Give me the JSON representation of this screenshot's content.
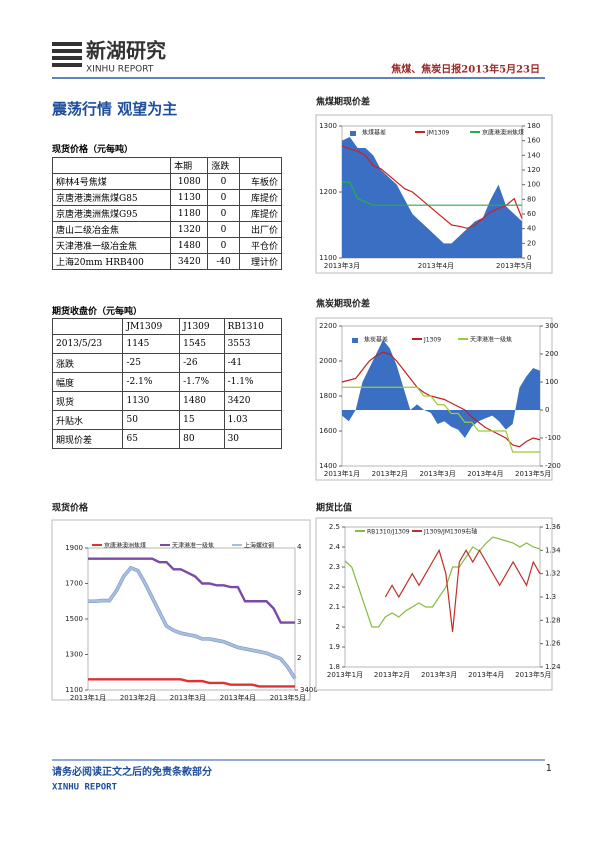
{
  "header": {
    "logo_cn": "新湖研究",
    "logo_en": "XINHU REPORT",
    "report_title": "焦煤、焦炭日报2013年5月23日"
  },
  "headline": "震荡行情 观望为主",
  "spot_table": {
    "title": "现货价格（元每吨）",
    "columns": [
      "本期",
      "涨跌"
    ],
    "rows": [
      [
        "柳林4号焦煤",
        "1080",
        "0",
        "车板价"
      ],
      [
        "京唐港澳洲焦煤G85",
        "1130",
        "0",
        "库提价"
      ],
      [
        "京唐港澳洲焦煤G95",
        "1180",
        "0",
        "库提价"
      ],
      [
        "唐山二级冶金焦",
        "1320",
        "0",
        "出厂价"
      ],
      [
        "天津港准一级冶金焦",
        "1480",
        "0",
        "平仓价"
      ],
      [
        "上海20mm HRB400",
        "3420",
        "-40",
        "理计价"
      ]
    ]
  },
  "futures_table": {
    "title": "期货收盘价（元每吨）",
    "columns": [
      "JM1309",
      "J1309",
      "RB1310"
    ],
    "rows": [
      [
        "2013/5/23",
        "1145",
        "1545",
        "3553"
      ],
      [
        "涨跌",
        "-25",
        "-26",
        "-41"
      ],
      [
        "幅度",
        "-2.1%",
        "-1.7%",
        "-1.1%"
      ],
      [
        "现货",
        "1130",
        "1480",
        "3420"
      ],
      [
        "升贴水",
        "50",
        "15",
        "1.03"
      ],
      [
        "期现价差",
        "65",
        "80",
        "30"
      ]
    ]
  },
  "chart_data": [
    {
      "type": "line",
      "title": "焦煤期现价差",
      "categories": [
        "2013年3月",
        null,
        null,
        null,
        null,
        null,
        null,
        null,
        null,
        null,
        null,
        null,
        "2013年4月",
        null,
        null,
        null,
        null,
        null,
        null,
        null,
        null,
        null,
        "2013年5月",
        null
      ],
      "ylim": [
        1100,
        1300
      ],
      "yticks": [
        1100,
        1200,
        1300
      ],
      "y2lim": [
        0,
        180
      ],
      "y2ticks": [
        0,
        20,
        40,
        60,
        80,
        100,
        120,
        140,
        160,
        180
      ],
      "series": [
        {
          "name": "焦煤基差",
          "color": "#3a6fc4",
          "kind": "area",
          "axis": "y2",
          "values": [
            160,
            165,
            150,
            150,
            140,
            120,
            110,
            100,
            80,
            60,
            50,
            40,
            30,
            20,
            20,
            30,
            40,
            50,
            55,
            80,
            100,
            70,
            60,
            50
          ]
        },
        {
          "name": "JM1309",
          "color": "#d02020",
          "values": [
            1270,
            1265,
            1262,
            1255,
            1240,
            1235,
            1225,
            1215,
            1205,
            1200,
            1190,
            1180,
            1170,
            1160,
            1150,
            1148,
            1145,
            1150,
            1160,
            1170,
            1175,
            1180,
            1190,
            1160
          ]
        },
        {
          "name": "京唐港澳洲焦煤",
          "color": "#22b04a",
          "values": [
            1215,
            1215,
            1190,
            1185,
            1180,
            1180,
            1180,
            1180,
            1180,
            1180,
            1180,
            1180,
            1180,
            1180,
            1180,
            1180,
            1180,
            1180,
            1180,
            1180,
            1180,
            1180,
            1180,
            1180
          ]
        }
      ]
    },
    {
      "type": "line",
      "title": "焦炭期现价差",
      "categories": [
        "2013年1月",
        null,
        null,
        null,
        null,
        null,
        null,
        "2013年2月",
        null,
        null,
        null,
        null,
        null,
        null,
        "2013年3月",
        null,
        null,
        null,
        null,
        null,
        null,
        "2013年4月",
        null,
        null,
        null,
        null,
        null,
        null,
        "2013年5月",
        null
      ],
      "ylim": [
        1400,
        2200
      ],
      "yticks": [
        1400,
        1600,
        1800,
        2000,
        2200
      ],
      "y2lim": [
        -200,
        300
      ],
      "y2ticks": [
        -200,
        -100,
        0,
        100,
        200,
        300
      ],
      "series": [
        {
          "name": "焦炭基差",
          "color": "#3a6fc4",
          "kind": "area",
          "axis": "y2",
          "values": [
            -20,
            -40,
            0,
            100,
            150,
            200,
            250,
            220,
            160,
            80,
            0,
            20,
            0,
            -10,
            -50,
            -40,
            -60,
            -70,
            -100,
            -60,
            -40,
            -30,
            -20,
            -40,
            -70,
            -50,
            80,
            120,
            150,
            140
          ]
        },
        {
          "name": "J1309",
          "color": "#c02020",
          "values": [
            1880,
            1890,
            1900,
            1950,
            2000,
            2030,
            2050,
            2040,
            2000,
            1950,
            1900,
            1850,
            1820,
            1800,
            1790,
            1780,
            1760,
            1740,
            1720,
            1680,
            1650,
            1620,
            1600,
            1580,
            1560,
            1520,
            1510,
            1540,
            1560,
            1550
          ]
        },
        {
          "name": "天津港准一级焦",
          "color": "#9acd32",
          "values": [
            1850,
            1850,
            1850,
            1850,
            1850,
            1850,
            1850,
            1850,
            1850,
            1850,
            1850,
            1850,
            1800,
            1800,
            1750,
            1750,
            1700,
            1700,
            1650,
            1650,
            1600,
            1600,
            1600,
            1600,
            1600,
            1480,
            1480,
            1480,
            1480,
            1480
          ]
        }
      ]
    },
    {
      "type": "line",
      "title": "现货价格",
      "categories": [
        "2013年1月",
        null,
        null,
        null,
        null,
        null,
        null,
        "2013年2月",
        null,
        null,
        null,
        null,
        null,
        null,
        "2013年3月",
        null,
        null,
        null,
        null,
        null,
        null,
        "2013年4月",
        null,
        null,
        null,
        null,
        null,
        null,
        "2013年5月",
        null
      ],
      "ylim": [
        1100,
        1900
      ],
      "yticks": [
        1100,
        1300,
        1500,
        1700,
        1900
      ],
      "y2lim": [
        3400,
        4400
      ],
      "y2ticks": [
        3400
      ],
      "axis_fragments": [
        "4",
        "3",
        "3",
        "2"
      ],
      "series": [
        {
          "name": "京唐港澳洲焦煤",
          "color": "#dd3333",
          "values": [
            1160,
            1160,
            1160,
            1160,
            1160,
            1160,
            1160,
            1160,
            1160,
            1160,
            1160,
            1160,
            1160,
            1160,
            1150,
            1150,
            1150,
            1140,
            1140,
            1140,
            1130,
            1130,
            1130,
            1130,
            1120,
            1120,
            1120,
            1120,
            1120,
            1120
          ]
        },
        {
          "name": "天津港准一级焦",
          "color": "#7a4aa6",
          "values": [
            1840,
            1840,
            1840,
            1840,
            1840,
            1840,
            1840,
            1840,
            1840,
            1840,
            1820,
            1820,
            1780,
            1780,
            1760,
            1740,
            1700,
            1700,
            1690,
            1690,
            1680,
            1680,
            1600,
            1600,
            1600,
            1600,
            1560,
            1480,
            1480,
            1480
          ]
        },
        {
          "name": "上海螺纹钢",
          "color": "#a8bfe0",
          "axis": "y2",
          "values": [
            4025,
            4025,
            4030,
            4030,
            4100,
            4200,
            4260,
            4240,
            4150,
            4050,
            3950,
            3850,
            3820,
            3800,
            3790,
            3780,
            3760,
            3760,
            3750,
            3740,
            3720,
            3700,
            3690,
            3680,
            3670,
            3660,
            3640,
            3620,
            3560,
            3480
          ]
        }
      ]
    },
    {
      "type": "line",
      "title": "期货比值",
      "categories": [
        "2013年1月",
        null,
        null,
        null,
        null,
        null,
        null,
        "2013年2月",
        null,
        null,
        null,
        null,
        null,
        null,
        "2013年3月",
        null,
        null,
        null,
        null,
        null,
        null,
        "2013年4月",
        null,
        null,
        null,
        null,
        null,
        null,
        "2013年5月",
        null
      ],
      "ylim": [
        1.8,
        2.5
      ],
      "yticks": [
        1.8,
        1.9,
        2,
        2.1,
        2.2,
        2.3,
        2.4,
        2.5
      ],
      "y2lim": [
        1.24,
        1.36
      ],
      "y2ticks": [
        1.24,
        1.26,
        1.28,
        1.3,
        1.32,
        1.34,
        1.36
      ],
      "series": [
        {
          "name": "RB1310/J1309",
          "color": "#88bb44",
          "values": [
            2.33,
            2.3,
            2.2,
            2.1,
            2.0,
            2.0,
            2.05,
            2.07,
            2.05,
            2.08,
            2.1,
            2.12,
            2.1,
            2.1,
            2.15,
            2.2,
            2.3,
            2.3,
            2.35,
            2.4,
            2.38,
            2.42,
            2.45,
            2.44,
            2.43,
            2.42,
            2.4,
            2.42,
            2.4,
            2.39
          ]
        },
        {
          "name": "J1309/JM1309右轴",
          "color": "#c0302a",
          "axis": "y2",
          "values": [
            null,
            null,
            null,
            null,
            null,
            null,
            1.3,
            1.31,
            1.3,
            1.31,
            1.32,
            1.31,
            1.32,
            1.33,
            1.34,
            1.32,
            1.27,
            1.33,
            1.34,
            1.33,
            1.34,
            1.33,
            1.32,
            1.31,
            1.32,
            1.33,
            1.32,
            1.31,
            1.33,
            1.32
          ]
        }
      ]
    }
  ],
  "footer": {
    "disclaimer": "请务必阅读正文之后的免责条款部分",
    "brand": "XINHU REPORT",
    "page": "1"
  }
}
